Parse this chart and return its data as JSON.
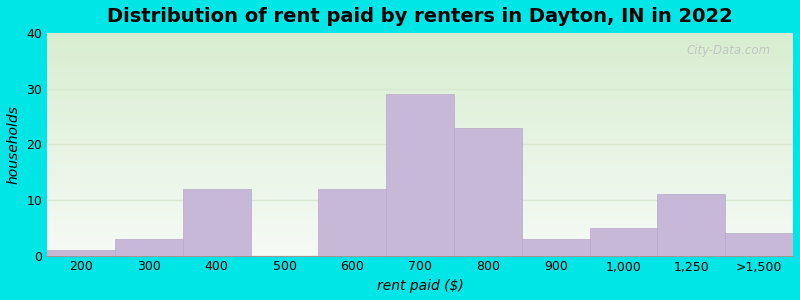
{
  "title": "Distribution of rent paid by renters in Dayton, IN in 2022",
  "xlabel": "rent paid ($)",
  "ylabel": "households",
  "tick_labels": [
    "200",
    "300",
    "400",
    "500",
    "600",
    "700",
    "800",
    "900",
    "1,000",
    "1,250",
    ">1,500"
  ],
  "bar_values": [
    1,
    3,
    12,
    0,
    12,
    29,
    23,
    3,
    5,
    11,
    4
  ],
  "bar_color": "#c8b8d8",
  "bar_edge_color": "#b8a8c8",
  "ylim": [
    0,
    40
  ],
  "yticks": [
    0,
    10,
    20,
    30,
    40
  ],
  "background_outer": "#00e5e5",
  "bg_top_color": "#d8edd0",
  "bg_bottom_color": "#f0faf0",
  "grid_color": "#d8e8d0",
  "title_fontsize": 14,
  "axis_label_fontsize": 10,
  "tick_fontsize": 9,
  "watermark_text": "City-Data.com"
}
